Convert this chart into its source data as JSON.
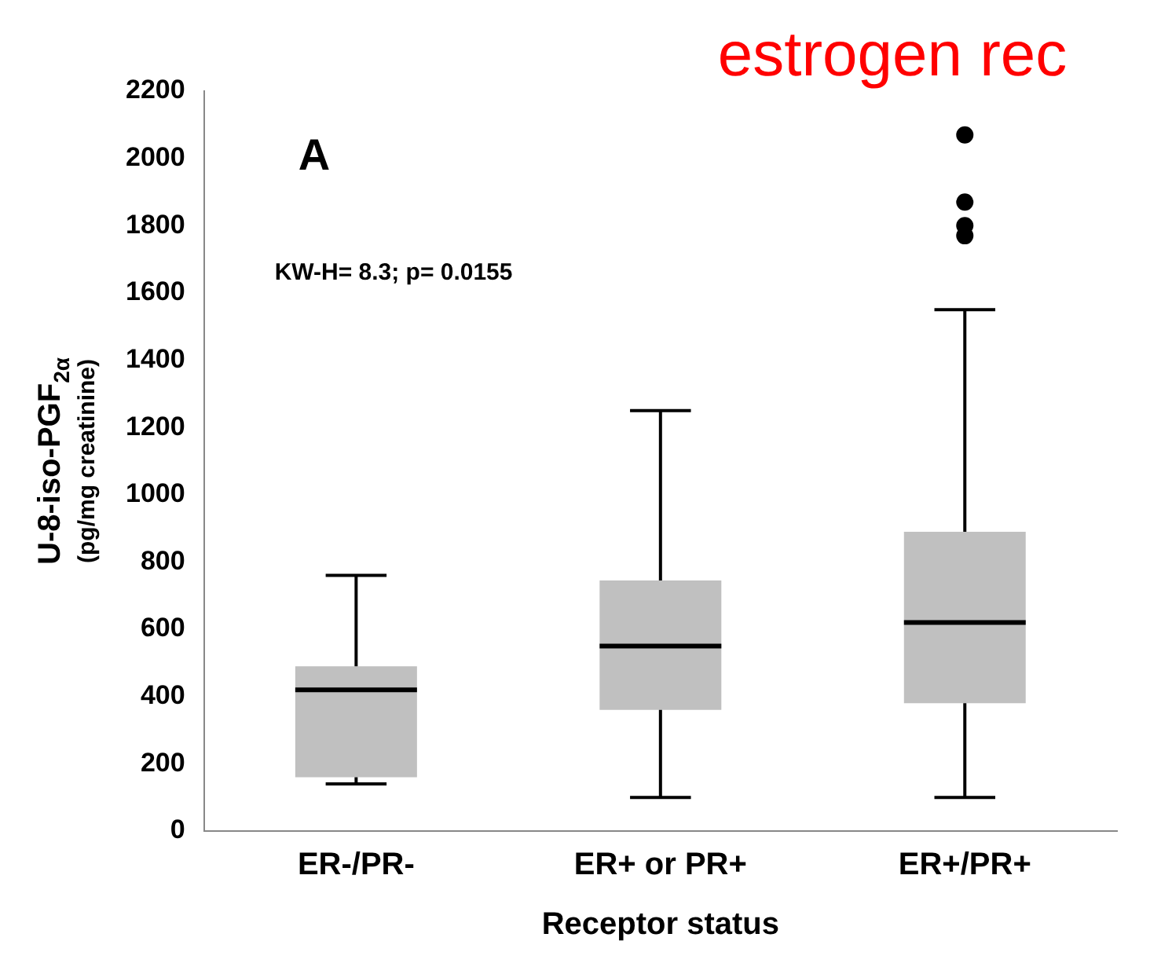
{
  "chart_data": {
    "type": "box",
    "categories": [
      "ER-/PR-",
      "ER+ or PR+",
      "ER+/PR+"
    ],
    "boxes": [
      {
        "low": 140,
        "q1": 160,
        "median": 420,
        "q3": 490,
        "high": 760
      },
      {
        "low": 100,
        "q1": 360,
        "median": 550,
        "q3": 745,
        "high": 1250
      },
      {
        "low": 100,
        "q1": 380,
        "median": 620,
        "q3": 890,
        "high": 1550,
        "outliers": [
          2070,
          1870,
          1800,
          1770
        ]
      }
    ],
    "color": "#c0c0c0",
    "xlabel": "Receptor status",
    "ylabel": "U-8-iso-PGF$_{2α}$\n(pg/mg creatinine)",
    "ylim": [
      0,
      2200
    ],
    "yticks": [
      0,
      200,
      400,
      600,
      800,
      1000,
      1200,
      1400,
      1600,
      1800,
      2000,
      2200
    ],
    "grid": false,
    "legend": false,
    "annotations": [
      "estrogen rec",
      "A",
      "KW-H= 8.3; p= 0.0155"
    ]
  }
}
